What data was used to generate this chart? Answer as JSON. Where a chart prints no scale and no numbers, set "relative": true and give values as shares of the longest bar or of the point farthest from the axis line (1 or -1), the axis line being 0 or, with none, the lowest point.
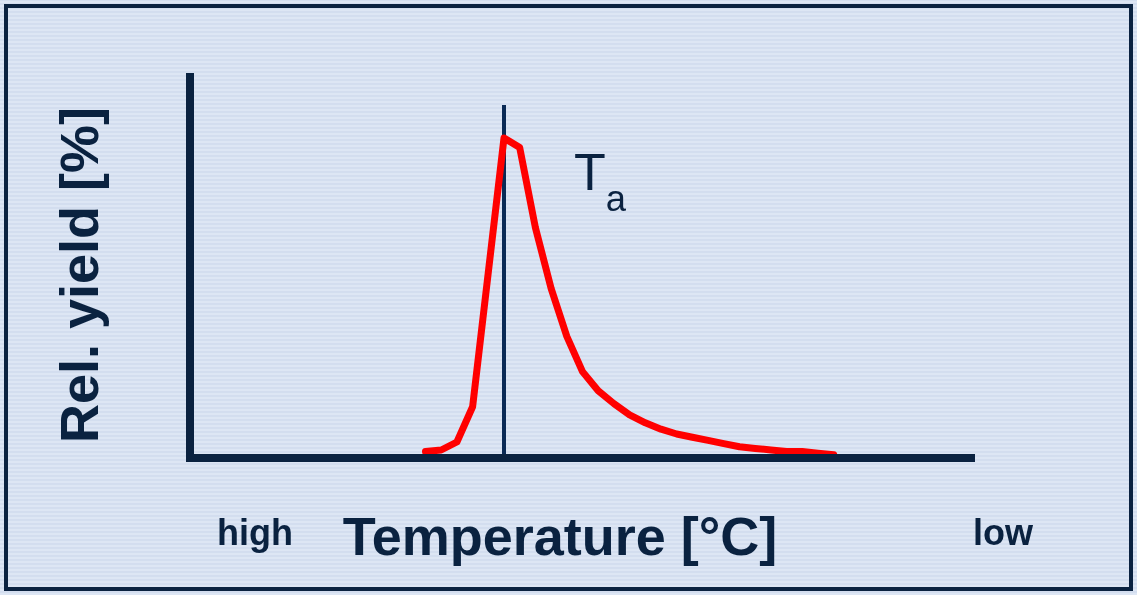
{
  "chart_data": {
    "type": "line",
    "relative": true,
    "xlabel": "Temperature [°C]",
    "ylabel": "Rel. yield [%]",
    "categories": [
      null,
      null,
      null,
      null,
      null,
      null,
      null,
      null,
      null,
      null,
      null,
      null,
      null,
      null,
      null,
      null,
      null,
      null,
      null,
      null,
      null,
      null,
      null,
      null,
      null,
      null,
      null,
      null,
      null,
      null,
      null,
      null,
      null,
      null,
      null,
      null,
      null,
      null,
      null,
      null,
      null,
      null,
      null,
      null,
      null,
      null,
      null,
      null,
      null,
      null,
      null
    ],
    "annotations": [
      {
        "text": "high"
      },
      {
        "text": "low"
      }
    ],
    "ref_lines": [
      {
        "axis": "x",
        "label": "T$_{a}$",
        "color": "#0a2a55"
      }
    ],
    "series": [
      {
        "color": "#ff0000",
        "values": [
          null,
          null,
          null,
          null,
          null,
          null,
          null,
          null,
          null,
          null,
          null,
          null,
          null,
          null,
          null,
          0.02,
          0.025,
          0.05,
          0.16,
          0.58,
          1.0,
          0.97,
          0.72,
          0.53,
          0.38,
          0.27,
          0.21,
          0.17,
          0.135,
          0.11,
          0.09,
          0.075,
          0.065,
          0.055,
          0.045,
          0.035,
          0.03,
          0.025,
          0.02,
          0.02,
          0.015,
          0.01,
          null,
          null,
          null,
          null,
          null,
          null,
          null,
          null,
          null
        ]
      }
    ]
  }
}
